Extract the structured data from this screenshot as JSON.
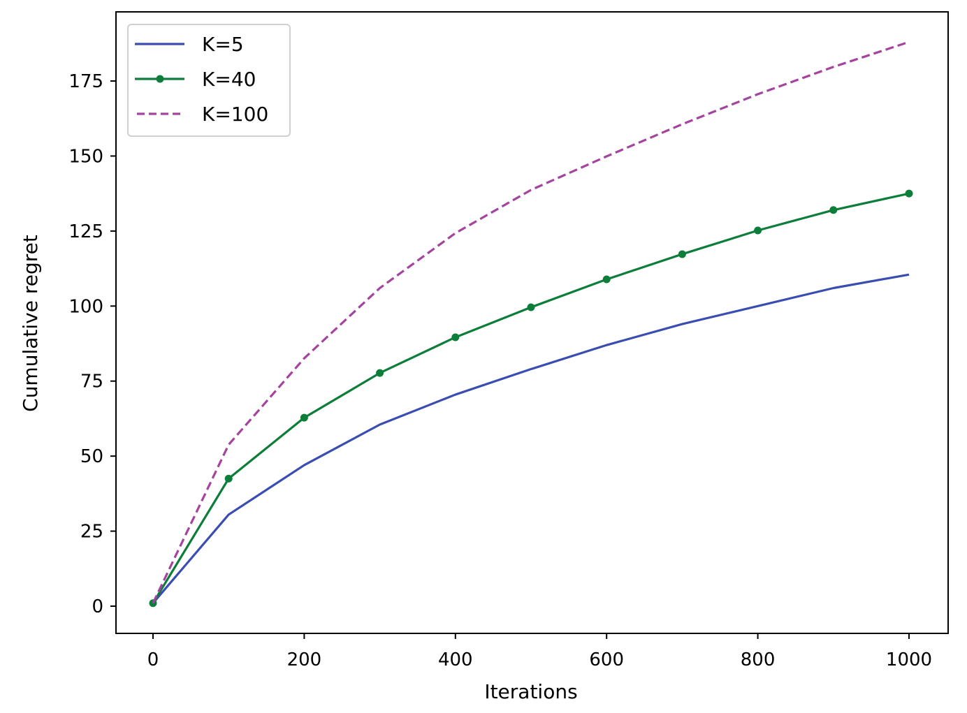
{
  "chart_data": {
    "type": "line",
    "title": "",
    "xlabel": "Iterations",
    "ylabel": "Cumulative regret",
    "x": [
      0,
      100,
      200,
      300,
      400,
      500,
      600,
      700,
      800,
      900,
      1000
    ],
    "xlim": [
      -50,
      1050
    ],
    "ylim": [
      -9,
      198
    ],
    "xticks": [
      0,
      200,
      400,
      600,
      800,
      1000
    ],
    "yticks": [
      0,
      25,
      50,
      75,
      100,
      125,
      150,
      175
    ],
    "grid": false,
    "legend_position": "upper left",
    "series": [
      {
        "name": "K=5",
        "color": "#3a4db1",
        "style": "solid",
        "marker": "none",
        "values": [
          1,
          30.5,
          47,
          60.5,
          70.5,
          79,
          87,
          94,
          100,
          106,
          110.5
        ]
      },
      {
        "name": "K=40",
        "color": "#0d7d3a",
        "style": "solid",
        "marker": "dot",
        "values": [
          1,
          42.5,
          62.8,
          77.7,
          89.6,
          99.6,
          108.9,
          117.3,
          125.2,
          132,
          137.5
        ]
      },
      {
        "name": "K=100",
        "color": "#a4449e",
        "style": "dashed",
        "marker": "none",
        "values": [
          1,
          53.8,
          82.6,
          106,
          124.3,
          138.7,
          149.9,
          160.6,
          170.6,
          179.7,
          188
        ]
      }
    ]
  }
}
